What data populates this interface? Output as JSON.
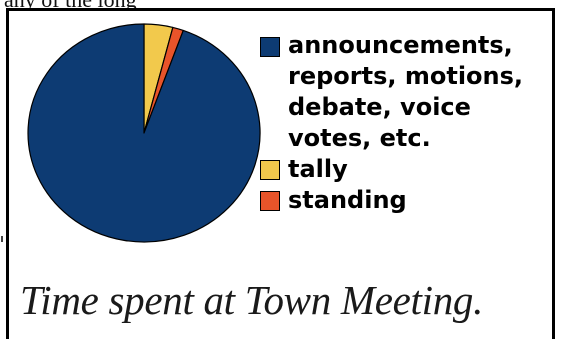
{
  "header_fragment": "any of the long",
  "caption": "Time spent at Town Meeting.",
  "chart_data": {
    "type": "pie",
    "title": "",
    "start_angle_deg": 0,
    "direction": "clockwise",
    "slices": [
      {
        "label": "tally",
        "value": 4,
        "color": "#f2c94c"
      },
      {
        "label": "standing",
        "value": 1.5,
        "color": "#e8542a"
      },
      {
        "label": "announcements, reports, motions, debate, voice votes, etc.",
        "value": 94.5,
        "color": "#0d3b73"
      }
    ],
    "legend": {
      "placement": "right",
      "items": [
        {
          "label": "announcements, reports, motions, debate, voice votes, etc.",
          "color": "#0d3b73"
        },
        {
          "label": "tally",
          "color": "#f2c94c"
        },
        {
          "label": "standing",
          "color": "#e8542a"
        }
      ]
    }
  }
}
